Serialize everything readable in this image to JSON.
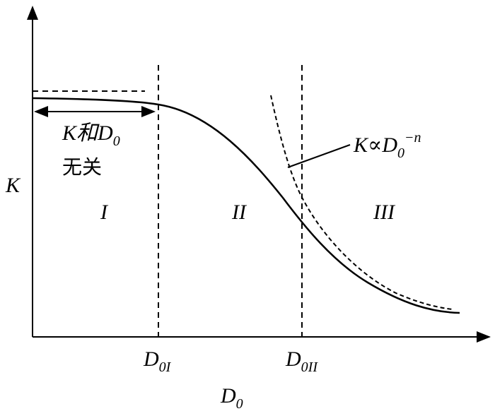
{
  "axes": {
    "y_label": "K",
    "x_label": {
      "main": "D",
      "sub": "0"
    }
  },
  "x_marks": [
    {
      "main": "D",
      "sub": "0",
      "roman": "I"
    },
    {
      "main": "D",
      "sub": "0",
      "roman": "II"
    }
  ],
  "regions": [
    "I",
    "II",
    "III"
  ],
  "left_note": {
    "line1": {
      "main": "K和D",
      "sub": "0"
    },
    "line2": "无关"
  },
  "curve_note": {
    "main": "K∝D",
    "sub": "0",
    "sup": "−n"
  }
}
